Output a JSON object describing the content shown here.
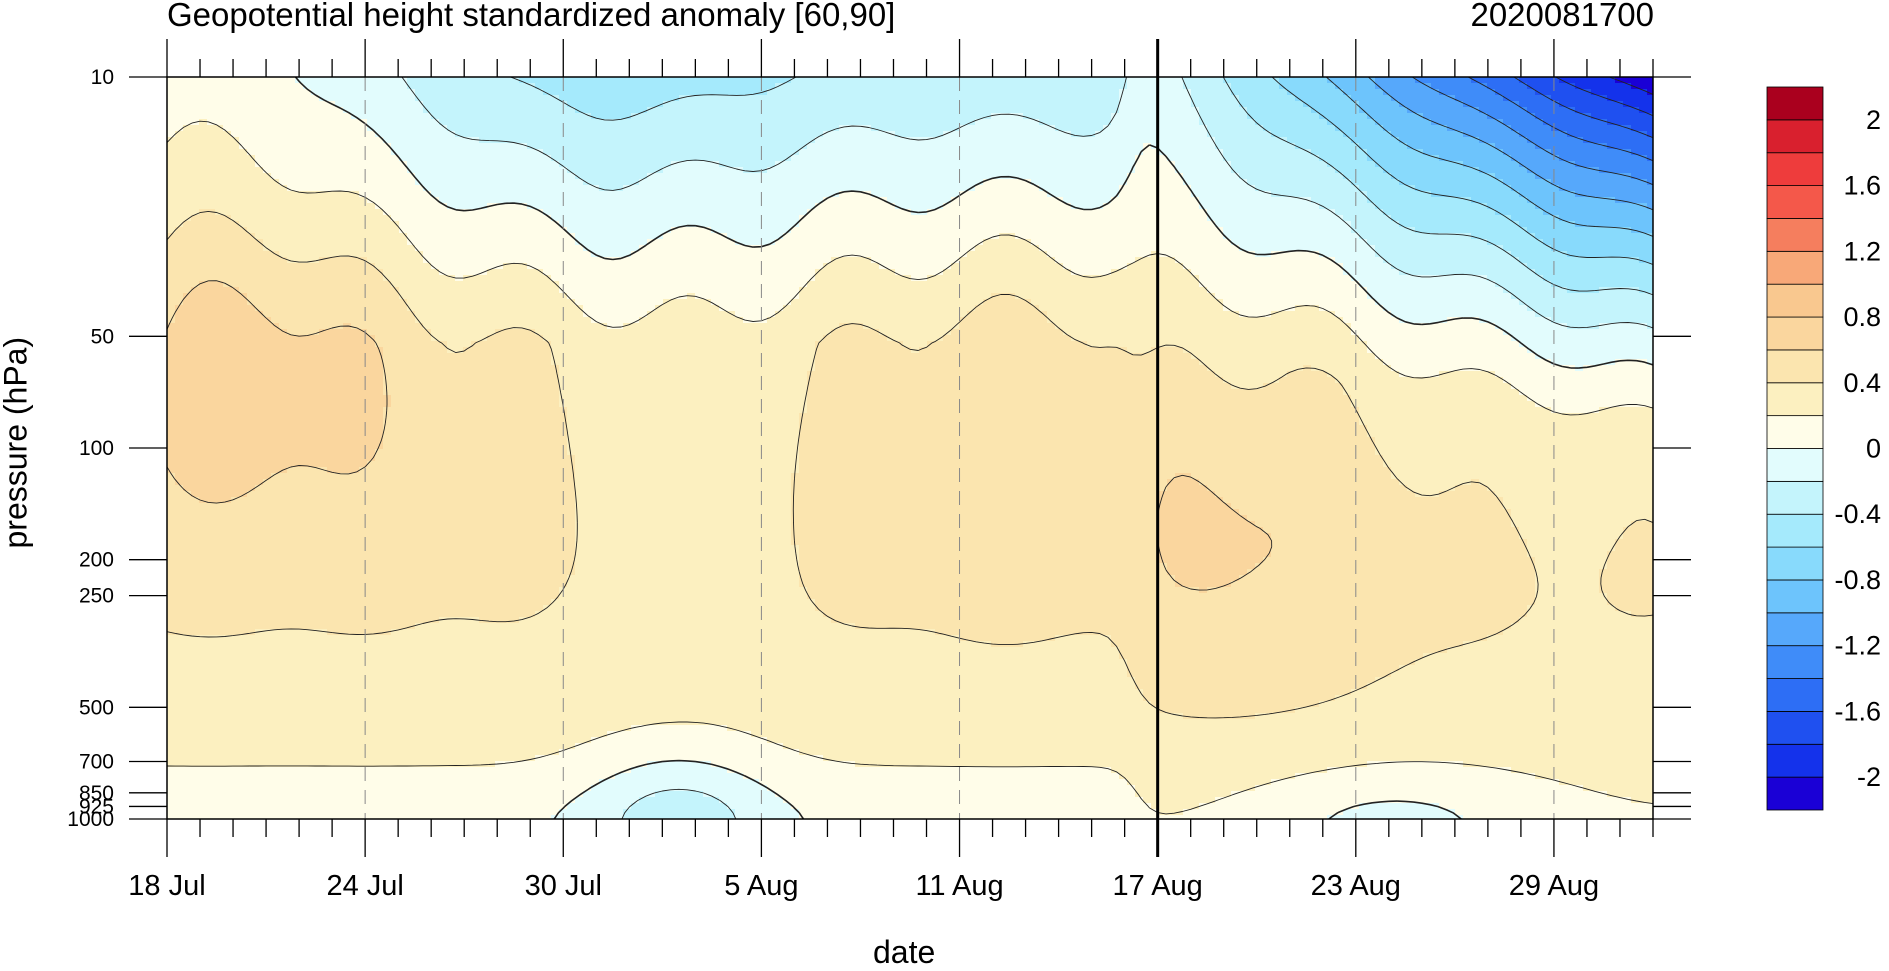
{
  "header": {
    "title": "Geopotential height standardized anomaly [60,90]",
    "date_stamp": "2020081700"
  },
  "chart_data": {
    "type": "heatmap",
    "subtype": "filled-contour",
    "title": "Geopotential height standardized anomaly [60,90]",
    "xlabel": "date",
    "ylabel": "pressure (hPa)",
    "x_ticks": [
      "18 Jul",
      "24 Jul",
      "30 Jul",
      "5 Aug",
      "11 Aug",
      "17 Aug",
      "23 Aug",
      "29 Aug"
    ],
    "x_range_days": [
      "18 Jul",
      "1 Sep"
    ],
    "y_ticks": [
      "10",
      "50",
      "100",
      "200",
      "250",
      "500",
      "700",
      "850",
      "925",
      "1000"
    ],
    "y_scale": "log",
    "y_range_hPa": [
      1000,
      10
    ],
    "marker_line": "17 Aug",
    "colorbar": {
      "levels": [
        -2.2,
        -2.0,
        -1.8,
        -1.6,
        -1.4,
        -1.2,
        -1.0,
        -0.8,
        -0.6,
        -0.4,
        -0.2,
        0,
        0.2,
        0.4,
        0.6,
        0.8,
        1.0,
        1.2,
        1.4,
        1.6,
        1.8,
        2.0,
        2.2
      ],
      "tick_labels": [
        "2",
        "1.6",
        "1.2",
        "0.8",
        "0.4",
        "0",
        "-0.4",
        "-0.8",
        "-1.2",
        "-1.6",
        "-2"
      ],
      "colors_low_to_high": [
        "#1A00D6",
        "#1432EB",
        "#1F50F0",
        "#2D6EF5",
        "#3F8CF9",
        "#56A8FB",
        "#6DC4FC",
        "#88DAFC",
        "#A5EAFC",
        "#C4F4FC",
        "#E2FCFD",
        "#FFFDE9",
        "#FCF0C0",
        "#FBE5AF",
        "#FAD69E",
        "#F9C88F",
        "#F8A878",
        "#F57E5E",
        "#F4584A",
        "#EE3C3C",
        "#D9202E",
        "#AA001E"
      ]
    }
  }
}
